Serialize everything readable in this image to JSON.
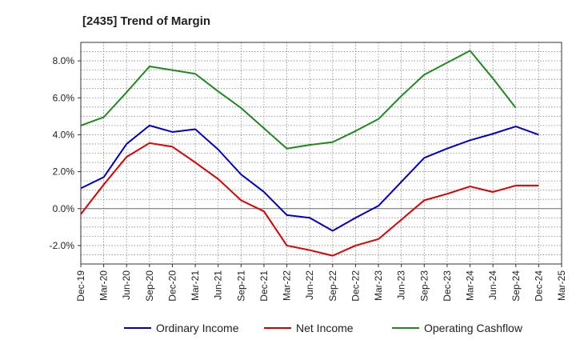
{
  "chart_data": {
    "type": "line",
    "title": "[2435]  Trend of Margin",
    "xlabel": "",
    "ylabel": "",
    "categories": [
      "Dec-19",
      "Mar-20",
      "Jun-20",
      "Sep-20",
      "Dec-20",
      "Mar-21",
      "Jun-21",
      "Sep-21",
      "Dec-21",
      "Mar-22",
      "Jun-22",
      "Sep-22",
      "Dec-22",
      "Mar-23",
      "Jun-23",
      "Sep-23",
      "Dec-23",
      "Mar-24",
      "Jun-24",
      "Sep-24",
      "Dec-24",
      "Mar-25"
    ],
    "ylim": [
      -3.0,
      9.0
    ],
    "yticks": [
      -2.0,
      0.0,
      2.0,
      4.0,
      6.0,
      8.0
    ],
    "ytick_labels": [
      "-2.0%",
      "0.0%",
      "2.0%",
      "4.0%",
      "6.0%",
      "8.0%"
    ],
    "grid": true,
    "legend_position": "bottom",
    "series": [
      {
        "name": "Ordinary Income",
        "color": "#0000cc",
        "values": [
          1.1,
          1.7,
          3.5,
          4.5,
          4.15,
          4.3,
          3.2,
          1.85,
          0.9,
          -0.35,
          -0.5,
          -1.2,
          -0.5,
          0.15,
          1.45,
          2.75,
          3.25,
          3.7,
          4.05,
          4.45,
          4.0,
          null
        ]
      },
      {
        "name": "Net Income",
        "color": "#dd0000",
        "values": [
          -0.3,
          1.3,
          2.8,
          3.55,
          3.35,
          2.5,
          1.6,
          0.45,
          -0.15,
          -2.0,
          -2.25,
          -2.55,
          -2.0,
          -1.65,
          -0.6,
          0.45,
          0.8,
          1.2,
          0.9,
          1.25,
          1.25,
          null
        ]
      },
      {
        "name": "Operating Cashflow",
        "color": "#228822",
        "values": [
          4.5,
          4.95,
          6.3,
          7.7,
          7.5,
          7.3,
          6.35,
          5.45,
          4.35,
          3.25,
          3.45,
          3.6,
          4.2,
          4.85,
          6.1,
          7.25,
          7.9,
          8.55,
          7.05,
          5.45,
          null,
          null
        ]
      }
    ]
  }
}
